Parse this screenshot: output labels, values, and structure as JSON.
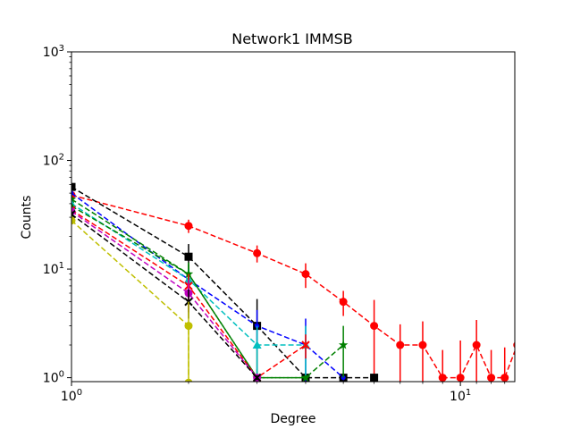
{
  "chart_data": {
    "type": "line",
    "title": "Network1 IMMSB",
    "xlabel": "Degree",
    "ylabel": "Counts",
    "x_scale": "log",
    "y_scale": "log",
    "xlim": [
      1,
      13.8
    ],
    "ylim": [
      0.92,
      1000
    ],
    "grid": false,
    "x_ticks": [
      {
        "value": 1,
        "base": "10",
        "exp": "0"
      },
      {
        "value": 10,
        "base": "10",
        "exp": "1"
      }
    ],
    "y_ticks": [
      {
        "value": 1,
        "base": "10",
        "exp": "0"
      },
      {
        "value": 10,
        "base": "10",
        "exp": "1"
      },
      {
        "value": 100,
        "base": "10",
        "exp": "2"
      },
      {
        "value": 1000,
        "base": "10",
        "exp": "3"
      }
    ],
    "series": [
      {
        "color": "#ff0000",
        "marker": "o",
        "x": [
          1,
          2,
          3,
          4,
          5,
          6,
          7,
          8,
          9,
          10,
          11,
          12,
          13,
          14
        ],
        "y": [
          48,
          25,
          14,
          9,
          5,
          3,
          2,
          2,
          1,
          1,
          2,
          1,
          1,
          2
        ],
        "err": [
          4,
          3.5,
          2.5,
          2.3,
          1.3,
          2.2,
          1.1,
          1.3,
          0.8,
          1.2,
          1.4,
          0.8,
          0.9,
          1.2
        ]
      },
      {
        "color": "#000000",
        "marker": "s",
        "x": [
          1,
          2,
          3,
          4,
          5,
          6
        ],
        "y": [
          57,
          13,
          3,
          1,
          1,
          1
        ],
        "err": [
          3,
          4,
          2.3,
          0.05,
          0.05,
          0.05
        ]
      },
      {
        "color": "#0000ff",
        "marker": ".",
        "x": [
          1,
          2,
          3,
          4,
          5
        ],
        "y": [
          50,
          8,
          3,
          2,
          1
        ],
        "err": [
          3,
          2,
          1.2,
          1.5,
          0.05
        ]
      },
      {
        "color": "#008000",
        "marker": "*",
        "x": [
          1,
          2,
          3,
          4,
          5
        ],
        "y": [
          44,
          9,
          1,
          1,
          2
        ],
        "err": [
          3,
          2.5,
          0.2,
          0.05,
          1
        ]
      },
      {
        "color": "#00bfbf",
        "marker": "^",
        "x": [
          1,
          2,
          3,
          4
        ],
        "y": [
          40,
          8,
          2,
          2
        ],
        "err": [
          3,
          2,
          1,
          1
        ]
      },
      {
        "color": "#008000",
        "marker": ".",
        "x": [
          1,
          2,
          3,
          4
        ],
        "y": [
          38,
          9,
          1,
          1
        ],
        "err": [
          2,
          2,
          0.05,
          0.05
        ]
      },
      {
        "color": "#ff0000",
        "marker": "x",
        "x": [
          1,
          2,
          3,
          4
        ],
        "y": [
          35,
          7,
          1,
          2
        ],
        "err": [
          2,
          2,
          0.05,
          0.5
        ]
      },
      {
        "color": "#bf00bf",
        "marker": "o",
        "x": [
          1,
          2,
          3
        ],
        "y": [
          34,
          6,
          1
        ],
        "err": [
          2,
          2,
          0.05
        ]
      },
      {
        "color": "#000000",
        "marker": "x",
        "x": [
          1,
          2,
          3
        ],
        "y": [
          32,
          5,
          1
        ],
        "err": [
          2,
          1.5,
          0.05
        ]
      },
      {
        "color": "#bfbf00",
        "marker": "o",
        "x": [
          1,
          2,
          2
        ],
        "y": [
          28,
          3,
          0.9
        ],
        "err": [
          2,
          2,
          0
        ]
      }
    ]
  }
}
